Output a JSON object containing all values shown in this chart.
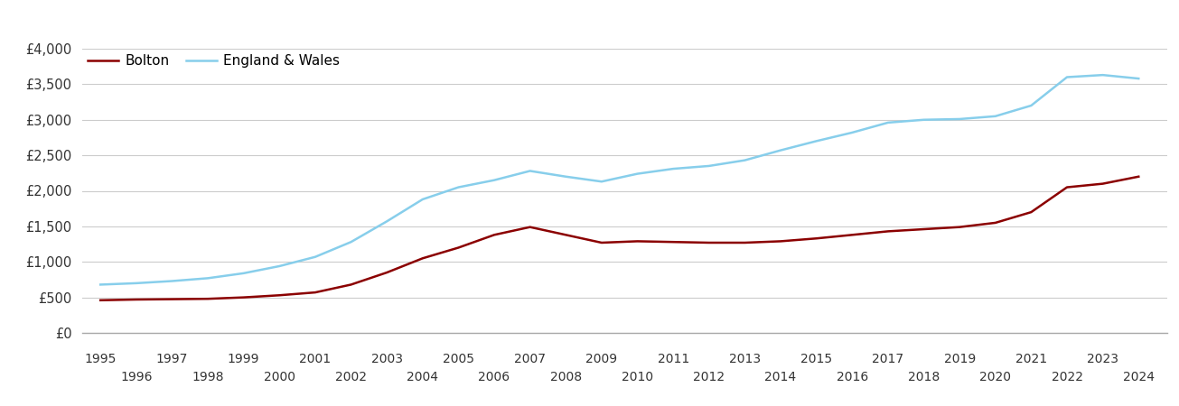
{
  "bolton_data": {
    "years": [
      1995,
      1996,
      1997,
      1998,
      1999,
      2000,
      2001,
      2002,
      2003,
      2004,
      2005,
      2006,
      2007,
      2008,
      2009,
      2010,
      2011,
      2012,
      2013,
      2014,
      2015,
      2016,
      2017,
      2018,
      2019,
      2020,
      2021,
      2022,
      2023,
      2024
    ],
    "values": [
      460,
      470,
      475,
      480,
      500,
      530,
      570,
      680,
      850,
      1050,
      1200,
      1380,
      1490,
      1380,
      1270,
      1290,
      1280,
      1270,
      1270,
      1290,
      1330,
      1380,
      1430,
      1460,
      1490,
      1550,
      1700,
      2050,
      2100,
      2200
    ]
  },
  "england_wales_data": {
    "years": [
      1995,
      1996,
      1997,
      1998,
      1999,
      2000,
      2001,
      2002,
      2003,
      2004,
      2005,
      2006,
      2007,
      2008,
      2009,
      2010,
      2011,
      2012,
      2013,
      2014,
      2015,
      2016,
      2017,
      2018,
      2019,
      2020,
      2021,
      2022,
      2023,
      2024
    ],
    "values": [
      680,
      700,
      730,
      770,
      840,
      940,
      1070,
      1280,
      1570,
      1880,
      2050,
      2150,
      2280,
      2200,
      2130,
      2240,
      2310,
      2350,
      2430,
      2570,
      2700,
      2820,
      2960,
      3000,
      3010,
      3050,
      3200,
      3600,
      3630,
      3580
    ]
  },
  "bolton_color": "#8B0000",
  "england_wales_color": "#87CEEB",
  "ylim": [
    0,
    4000
  ],
  "yticks": [
    0,
    500,
    1000,
    1500,
    2000,
    2500,
    3000,
    3500,
    4000
  ],
  "ytick_labels": [
    "£0",
    "£500",
    "£1,000",
    "£1,500",
    "£2,000",
    "£2,500",
    "£3,000",
    "£3,500",
    "£4,000"
  ],
  "xticks_odd": [
    1995,
    1997,
    1999,
    2001,
    2003,
    2005,
    2007,
    2009,
    2011,
    2013,
    2015,
    2017,
    2019,
    2021,
    2023
  ],
  "xticks_even": [
    1996,
    1998,
    2000,
    2002,
    2004,
    2006,
    2008,
    2010,
    2012,
    2014,
    2016,
    2018,
    2020,
    2022,
    2024
  ],
  "legend_bolton": "Bolton",
  "legend_ew": "England & Wales",
  "background_color": "#ffffff",
  "grid_color": "#cccccc",
  "line_width": 1.8,
  "xlim": [
    1994.5,
    2024.8
  ]
}
